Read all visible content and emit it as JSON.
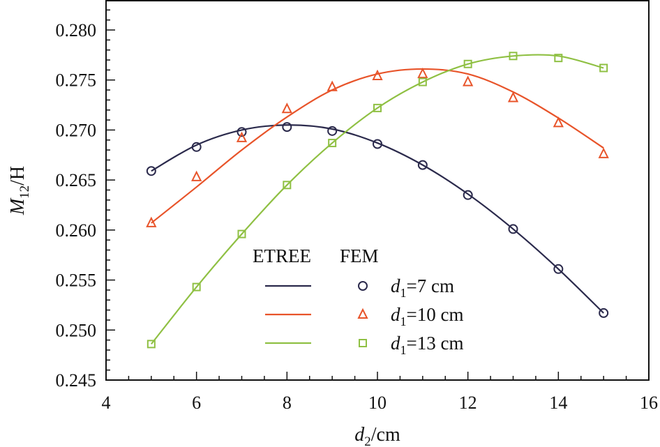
{
  "chart_data": {
    "type": "line",
    "title": "",
    "xlabel": "d2/cm",
    "xlabel_parts": {
      "var": "d",
      "sub": "2",
      "unit": "/cm"
    },
    "ylabel": "M12/H",
    "ylabel_parts": {
      "var": "M",
      "sub": "12",
      "unit": "/H"
    },
    "xlim": [
      4,
      16
    ],
    "ylim": [
      0.245,
      0.2835
    ],
    "xticks": [
      4,
      6,
      8,
      10,
      12,
      14,
      16
    ],
    "xtick_labels": [
      "4",
      "6",
      "8",
      "10",
      "12",
      "14",
      "16"
    ],
    "yticks": [
      0.245,
      0.25,
      0.255,
      0.26,
      0.265,
      0.27,
      0.275,
      0.28
    ],
    "ytick_labels": [
      "0.245",
      "0.250",
      "0.255",
      "0.260",
      "0.265",
      "0.270",
      "0.275",
      "0.280"
    ],
    "grid": false,
    "legend": {
      "position": "lower center",
      "header_left": "ETREE",
      "header_right": "FEM",
      "entries": [
        {
          "var": "d",
          "sub": "1",
          "text": "=7 cm"
        },
        {
          "var": "d",
          "sub": "1",
          "text": "=10 cm"
        },
        {
          "var": "d",
          "sub": "1",
          "text": "=13 cm"
        }
      ]
    },
    "x": [
      5,
      6,
      7,
      8,
      9,
      10,
      11,
      12,
      13,
      14,
      15
    ],
    "series": [
      {
        "name": "d1=7 cm",
        "color": "#2b2a4c",
        "marker": "circle",
        "fem_values": [
          0.2659,
          0.2683,
          0.2698,
          0.2703,
          0.2699,
          0.2686,
          0.2665,
          0.2635,
          0.2601,
          0.2561,
          0.2517
        ],
        "etree_curve": [
          0.2659,
          0.2685,
          0.27,
          0.2705,
          0.2701,
          0.2687,
          0.2665,
          0.2636,
          0.2601,
          0.2561,
          0.2517
        ]
      },
      {
        "name": "d1=10 cm",
        "color": "#e8542a",
        "marker": "triangle",
        "fem_values": [
          0.2607,
          0.2653,
          0.2692,
          0.2721,
          0.2743,
          0.2754,
          0.2756,
          0.2748,
          0.2732,
          0.2707,
          0.2676
        ],
        "etree_curve": [
          0.2607,
          0.2643,
          0.268,
          0.2713,
          0.274,
          0.2756,
          0.2761,
          0.2756,
          0.2738,
          0.2712,
          0.2682
        ]
      },
      {
        "name": "d1=13 cm",
        "color": "#8fc043",
        "marker": "square",
        "fem_values": [
          0.2486,
          0.2543,
          0.2596,
          0.2645,
          0.2687,
          0.2722,
          0.2748,
          0.2766,
          0.2774,
          0.2772,
          0.2762
        ],
        "etree_curve": [
          0.2486,
          0.2543,
          0.2596,
          0.2645,
          0.2687,
          0.2722,
          0.2748,
          0.2766,
          0.2774,
          0.2774,
          0.2762
        ]
      }
    ]
  }
}
